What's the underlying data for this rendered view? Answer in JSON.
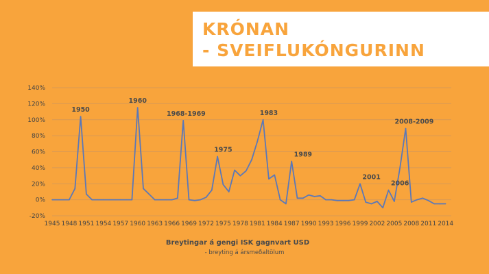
{
  "slide": {
    "title_line1": "KRÓNAN",
    "title_line2": "- SVEIFLUKÓNGURINN",
    "caption_main": "Breytingar á gengi ISK gagnvart USD",
    "caption_sub": "- breyting á ársmeðaltölum"
  },
  "colors": {
    "background": "#F8A43C",
    "line": "#5B78B8",
    "grid": "#D89A55",
    "title": "#F8A43C"
  },
  "chart_data": {
    "type": "line",
    "title": "KRÓNAN - SVEIFLUKÓNGURINN",
    "xlabel": "Breytingar á gengi ISK gagnvart USD",
    "ylabel": "",
    "xlim": [
      1945,
      2015
    ],
    "ylim": [
      -20,
      140
    ],
    "y_ticks": [
      "-20%",
      "0%",
      "20%",
      "40%",
      "60%",
      "80%",
      "100%",
      "120%",
      "140%"
    ],
    "x_ticks": [
      "1945",
      "1948",
      "1951",
      "1954",
      "1957",
      "1960",
      "1963",
      "1966",
      "1969",
      "1972",
      "1975",
      "1978",
      "1981",
      "1984",
      "1987",
      "1990",
      "1993",
      "1996",
      "1999",
      "2002",
      "2005",
      "2008",
      "2011",
      "2014"
    ],
    "grid": true,
    "legend": "none",
    "series": [
      {
        "x": [
          1945,
          1946,
          1947,
          1948,
          1949,
          1950,
          1951,
          1952,
          1953,
          1954,
          1955,
          1956,
          1957,
          1958,
          1959,
          1960,
          1961,
          1962,
          1963,
          1964,
          1965,
          1966,
          1967,
          1968,
          1969,
          1970,
          1971,
          1972,
          1973,
          1974,
          1975,
          1976,
          1977,
          1978,
          1979,
          1980,
          1981,
          1982,
          1983,
          1984,
          1985,
          1986,
          1987,
          1988,
          1989,
          1990,
          1991,
          1992,
          1993,
          1994,
          1995,
          1996,
          1997,
          1998,
          1999,
          2000,
          2001,
          2002,
          2003,
          2004,
          2005,
          2006,
          2007,
          2008,
          2009,
          2010,
          2011,
          2012,
          2013,
          2014
        ],
        "values": [
          0,
          0,
          0,
          0,
          14,
          104,
          7,
          0,
          0,
          0,
          0,
          0,
          0,
          0,
          0,
          115,
          14,
          7,
          0,
          0,
          0,
          0,
          2,
          99,
          0,
          -1,
          0,
          3,
          12,
          54,
          19,
          10,
          37,
          30,
          36,
          50,
          73,
          100,
          26,
          31,
          0,
          -5,
          48,
          2,
          2,
          6,
          4,
          5,
          0,
          0,
          -1,
          -1,
          -1,
          0,
          20,
          -3,
          -5,
          -2,
          -10,
          12,
          -2,
          40,
          89,
          -3,
          0,
          2,
          -1,
          -5,
          -5,
          -5
        ]
      }
    ],
    "annotations": [
      {
        "text": "1950",
        "x": 1950,
        "y": 104
      },
      {
        "text": "1960",
        "x": 1960,
        "y": 115
      },
      {
        "text": "1968-1969",
        "x": 1968.5,
        "y": 99
      },
      {
        "text": "1975",
        "x": 1975,
        "y": 54
      },
      {
        "text": "1983",
        "x": 1983,
        "y": 100
      },
      {
        "text": "1989",
        "x": 1989,
        "y": 48
      },
      {
        "text": "2001",
        "x": 2001,
        "y": 20
      },
      {
        "text": "2006",
        "x": 2006,
        "y": 12
      },
      {
        "text": "2008-2009",
        "x": 2008.5,
        "y": 89
      }
    ]
  }
}
